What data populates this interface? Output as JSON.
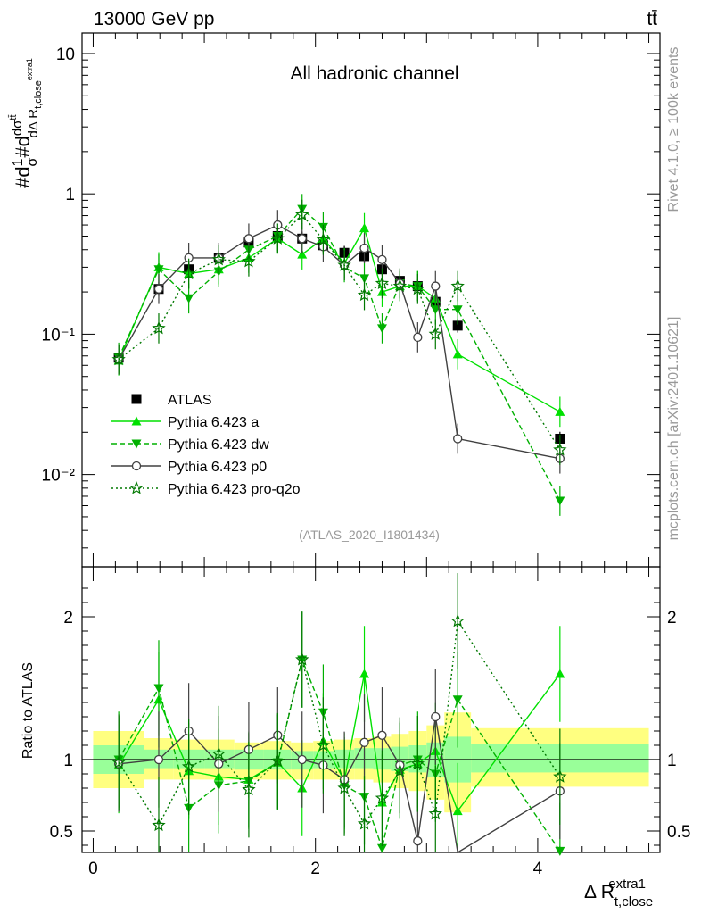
{
  "header": {
    "energy_label": "13000 GeV pp",
    "process_label": "tt̄",
    "channel_label": "All hadronic channel",
    "analysis_id": "(ATLAS_2020_I1801434)",
    "side_label_top": "Rivet 4.1.0, ≥ 100k events",
    "side_label_bottom": "mcplots.cern.ch [arXiv:2401.10621]"
  },
  "colors": {
    "atlas": "#000000",
    "pythia_a": "#00e000",
    "pythia_dw": "#00b000",
    "pythia_p0": "#404040",
    "pythia_pro_q2o": "#007800",
    "band_outer": "#ffff80",
    "band_inner": "#99ff99"
  },
  "chart_data": [
    {
      "type": "line",
      "panel": "main",
      "title": "All hadronic channel",
      "ylabel": "#d 1/σ #d dσ^{tt̄}/dΔ R_{t,close}^{extra1}",
      "xlabel": "",
      "log_y": true,
      "ylim": [
        0.0022,
        14
      ],
      "xlim": [
        -0.1,
        5.1
      ],
      "y_ticks": [
        {
          "value": 0.01,
          "label": "10⁻²"
        },
        {
          "value": 0.1,
          "label": "10⁻¹"
        },
        {
          "value": 1,
          "label": "1"
        },
        {
          "value": 10,
          "label": "10"
        }
      ],
      "x": [
        0.23,
        0.59,
        0.86,
        1.13,
        1.4,
        1.66,
        1.88,
        2.07,
        2.26,
        2.44,
        2.6,
        2.76,
        2.92,
        3.08,
        3.28,
        4.2
      ],
      "series": [
        {
          "name": "ATLAS",
          "style": "square",
          "values": [
            0.068,
            0.21,
            0.29,
            0.35,
            0.45,
            0.5,
            0.48,
            0.43,
            0.38,
            0.36,
            0.29,
            0.24,
            0.22,
            0.17,
            0.115,
            0.018
          ]
        },
        {
          "name": "Pythia 6.423 a",
          "style": "triangle-up",
          "values": [
            0.065,
            0.3,
            0.27,
            0.29,
            0.35,
            0.48,
            0.37,
            0.48,
            0.32,
            0.57,
            0.2,
            0.22,
            0.22,
            0.18,
            0.072,
            0.028
          ]
        },
        {
          "name": "Pythia 6.423 dw",
          "style": "triangle-down",
          "values": [
            0.068,
            0.29,
            0.18,
            0.28,
            0.4,
            0.5,
            0.78,
            0.58,
            0.3,
            0.25,
            0.11,
            0.23,
            0.22,
            0.15,
            0.15,
            0.0065
          ]
        },
        {
          "name": "Pythia 6.423 p0",
          "style": "circle",
          "values": [
            0.066,
            0.21,
            0.35,
            0.35,
            0.48,
            0.6,
            0.48,
            0.42,
            0.31,
            0.41,
            0.34,
            0.23,
            0.095,
            0.22,
            0.018,
            0.013
          ]
        },
        {
          "name": "Pythia 6.423 pro-q2o",
          "style": "star",
          "values": [
            0.066,
            0.11,
            0.27,
            0.34,
            0.33,
            0.48,
            0.71,
            0.47,
            0.31,
            0.19,
            0.23,
            0.22,
            0.21,
            0.1,
            0.22,
            0.015
          ]
        }
      ]
    },
    {
      "type": "line",
      "panel": "ratio",
      "ylabel": "Ratio to ATLAS",
      "xlabel": "Δ R_{t,close}^{extra1}",
      "ylim": [
        0.35,
        2.35
      ],
      "xlim": [
        -0.1,
        5.1
      ],
      "y_ticks": [
        {
          "value": 0.5,
          "label": "0.5"
        },
        {
          "value": 1,
          "label": "1"
        },
        {
          "value": 2,
          "label": "2"
        }
      ],
      "x_ticks": [
        {
          "value": 0,
          "label": "0"
        },
        {
          "value": 2,
          "label": "2"
        },
        {
          "value": 4,
          "label": "4"
        }
      ],
      "bands": {
        "edges": [
          0.0,
          0.46,
          0.72,
          1.0,
          1.27,
          1.53,
          1.78,
          1.98,
          2.17,
          2.35,
          2.52,
          2.68,
          2.84,
          3.0,
          3.16,
          3.4,
          5.0
        ],
        "outer_low": [
          0.8,
          0.86,
          0.86,
          0.86,
          0.86,
          0.86,
          0.86,
          0.86,
          0.86,
          0.86,
          0.84,
          0.8,
          0.78,
          0.72,
          0.63,
          0.81
        ],
        "outer_high": [
          1.2,
          1.15,
          1.14,
          1.14,
          1.12,
          1.13,
          1.12,
          1.13,
          1.14,
          1.15,
          1.16,
          1.18,
          1.2,
          1.24,
          1.33,
          1.22
        ],
        "inner_low": [
          0.9,
          0.94,
          0.94,
          0.94,
          0.93,
          0.93,
          0.93,
          0.94,
          0.94,
          0.94,
          0.93,
          0.92,
          0.91,
          0.88,
          0.84,
          0.91
        ],
        "inner_high": [
          1.1,
          1.07,
          1.07,
          1.07,
          1.07,
          1.07,
          1.06,
          1.06,
          1.07,
          1.08,
          1.08,
          1.09,
          1.1,
          1.12,
          1.16,
          1.11
        ]
      },
      "x": [
        0.23,
        0.59,
        0.86,
        1.13,
        1.4,
        1.66,
        1.88,
        2.07,
        2.26,
        2.44,
        2.6,
        2.76,
        2.92,
        3.08,
        3.28,
        4.2
      ],
      "series": [
        {
          "name": "Pythia 6.423 a",
          "style": "triangle-up",
          "values": [
            0.96,
            1.42,
            0.92,
            0.88,
            0.86,
            0.98,
            0.8,
            1.13,
            0.85,
            1.6,
            0.7,
            0.93,
            0.97,
            1.06,
            0.64,
            1.6
          ]
        },
        {
          "name": "Pythia 6.423 dw",
          "style": "triangle-down",
          "values": [
            1.0,
            1.5,
            0.66,
            0.82,
            0.85,
            0.98,
            1.7,
            1.33,
            0.82,
            0.74,
            0.38,
            0.96,
            1.0,
            0.9,
            1.42,
            0.36
          ]
        },
        {
          "name": "Pythia 6.423 p0",
          "style": "circle",
          "values": [
            0.97,
            1.0,
            1.2,
            0.97,
            1.07,
            1.17,
            1.0,
            0.96,
            0.86,
            1.12,
            1.17,
            0.96,
            0.43,
            1.3,
            0.16,
            0.78
          ]
        },
        {
          "name": "Pythia 6.423 pro-q2o",
          "style": "star",
          "values": [
            0.98,
            0.54,
            0.95,
            1.04,
            0.79,
            0.99,
            1.7,
            1.1,
            0.8,
            0.55,
            0.73,
            0.92,
            0.97,
            0.62,
            1.97,
            0.88
          ]
        }
      ]
    }
  ]
}
